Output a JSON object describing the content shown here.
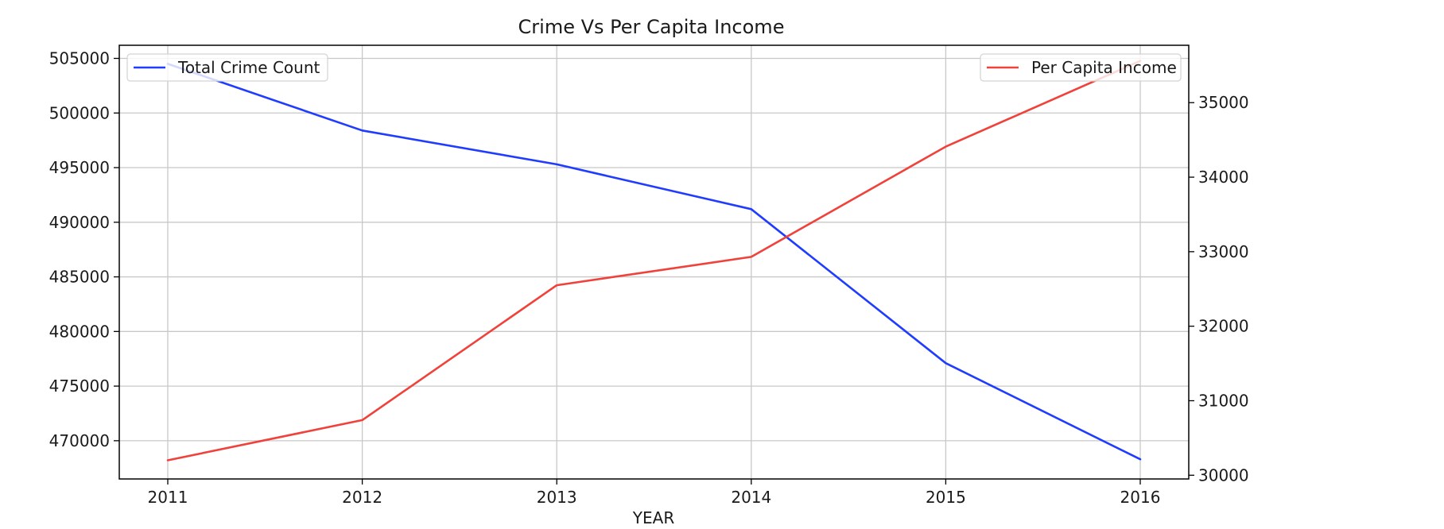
{
  "chart_data": {
    "type": "line",
    "title": "Crime Vs Per Capita Income",
    "xlabel": "YEAR",
    "ylabel": "",
    "ylabel_right": "",
    "x": [
      "2011",
      "2012",
      "2013",
      "2014",
      "2015",
      "2016"
    ],
    "x_ticks": [
      "2011",
      "2012",
      "2013",
      "2014",
      "2015",
      "2016"
    ],
    "y_ticks_left": [
      "470000",
      "475000",
      "480000",
      "485000",
      "490000",
      "495000",
      "500000",
      "505000"
    ],
    "y_ticks_right": [
      "30000",
      "31000",
      "32000",
      "33000",
      "34000",
      "35000"
    ],
    "ylim_left": [
      466500,
      506200
    ],
    "ylim_right": [
      29950,
      35770
    ],
    "grid": true,
    "series": [
      {
        "name": "Total Crime Count",
        "axis": "left",
        "color": "#1f3cff",
        "legend_position": "upper-left",
        "values": [
          504500,
          498400,
          495300,
          491200,
          477100,
          468300
        ]
      },
      {
        "name": "Per Capita Income",
        "axis": "right",
        "color": "#f0413a",
        "legend_position": "upper-right",
        "values": [
          30200,
          30740,
          32550,
          32930,
          34410,
          35560
        ]
      }
    ]
  }
}
